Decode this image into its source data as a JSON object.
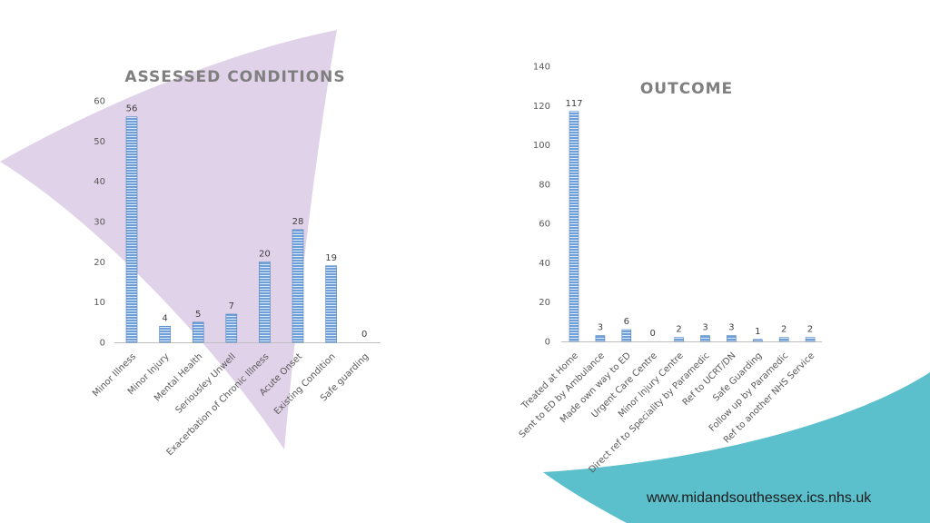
{
  "colors": {
    "bar_fill": "#6f9fd8",
    "bar_stripe": "#dbe8f6",
    "bar_edge": "#4f81bd",
    "decor_purple": "#e0d2e8",
    "decor_teal": "#5cbfcc",
    "axis": "#bfbfbf"
  },
  "footer": {
    "url": "www.midandsouthessex.ics.nhs.uk"
  },
  "chart_data": [
    {
      "type": "bar",
      "title": "ASSESSED CONDITIONS",
      "categories": [
        "Minor Illness",
        "Minor Injury",
        "Mental Health",
        "Seriousley Unwell",
        "Exacerbation of Chronic Illness",
        "Acute Onset",
        "Existing Condition",
        "Safe guarding"
      ],
      "values": [
        56,
        4,
        5,
        7,
        20,
        28,
        19,
        0
      ],
      "ylim": [
        0,
        60
      ],
      "yticks": [
        0,
        10,
        20,
        30,
        40,
        50,
        60
      ],
      "grid": false,
      "legend": "none"
    },
    {
      "type": "bar",
      "title": "OUTCOME",
      "categories": [
        "Treated at Home",
        "Sent to ED by Ambulance",
        "Made own way to ED",
        "Urgent Care Centre",
        "Minor Injury Centre",
        "Direct ref to Speciality by Paramedic",
        "Ref to UCRT/DN",
        "Safe Guarding",
        "Follow up by Paramedic",
        "Ref to another NHS Service"
      ],
      "values": [
        117,
        3,
        6,
        0,
        2,
        3,
        3,
        1,
        2,
        2
      ],
      "ylim": [
        0,
        140
      ],
      "yticks": [
        0,
        20,
        40,
        60,
        80,
        100,
        120,
        140
      ],
      "grid": false,
      "legend": "none"
    }
  ]
}
